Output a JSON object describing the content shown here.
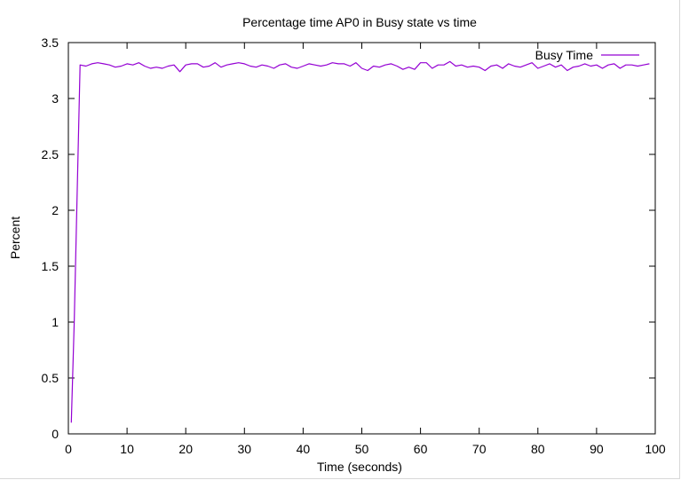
{
  "chart_data": {
    "type": "line",
    "title": "Percentage time AP0 in Busy state vs time",
    "xlabel": "Time (seconds)",
    "ylabel": "Percent",
    "xlim": [
      0,
      100
    ],
    "ylim": [
      0,
      3.5
    ],
    "x_ticks": [
      0,
      10,
      20,
      30,
      40,
      50,
      60,
      70,
      80,
      90,
      100
    ],
    "y_ticks": [
      0,
      0.5,
      1,
      1.5,
      2,
      2.5,
      3,
      3.5
    ],
    "x_tick_labels": [
      "0",
      "10",
      "20",
      "30",
      "40",
      "50",
      "60",
      "70",
      "80",
      "90",
      "100"
    ],
    "y_tick_labels": [
      "0",
      "0.5",
      "1",
      "1.5",
      "2",
      "2.5",
      "3",
      "3.5"
    ],
    "grid": false,
    "legend": "top-right",
    "series": [
      {
        "name": "Busy Time",
        "color": "#9400d3",
        "x": [
          0.5,
          1,
          2,
          3,
          4,
          5,
          6,
          7,
          8,
          9,
          10,
          11,
          12,
          13,
          14,
          15,
          16,
          17,
          18,
          19,
          20,
          21,
          22,
          23,
          24,
          25,
          26,
          27,
          28,
          29,
          30,
          31,
          32,
          33,
          34,
          35,
          36,
          37,
          38,
          39,
          40,
          41,
          42,
          43,
          44,
          45,
          46,
          47,
          48,
          49,
          50,
          51,
          52,
          53,
          54,
          55,
          56,
          57,
          58,
          59,
          60,
          61,
          62,
          63,
          64,
          65,
          66,
          67,
          68,
          69,
          70,
          71,
          72,
          73,
          74,
          75,
          76,
          77,
          78,
          79,
          80,
          81,
          82,
          83,
          84,
          85,
          86,
          87,
          88,
          89,
          90,
          91,
          92,
          93,
          94,
          95,
          96,
          97,
          98,
          99
        ],
        "y": [
          0.1,
          1.0,
          3.3,
          3.29,
          3.31,
          3.32,
          3.31,
          3.3,
          3.28,
          3.29,
          3.31,
          3.3,
          3.32,
          3.29,
          3.27,
          3.28,
          3.27,
          3.29,
          3.3,
          3.24,
          3.3,
          3.31,
          3.31,
          3.28,
          3.29,
          3.32,
          3.28,
          3.3,
          3.31,
          3.32,
          3.31,
          3.29,
          3.28,
          3.3,
          3.29,
          3.27,
          3.3,
          3.31,
          3.28,
          3.27,
          3.29,
          3.31,
          3.3,
          3.29,
          3.3,
          3.32,
          3.31,
          3.31,
          3.29,
          3.32,
          3.27,
          3.25,
          3.29,
          3.28,
          3.3,
          3.31,
          3.29,
          3.26,
          3.28,
          3.26,
          3.32,
          3.32,
          3.27,
          3.3,
          3.3,
          3.33,
          3.29,
          3.3,
          3.28,
          3.29,
          3.28,
          3.25,
          3.29,
          3.3,
          3.27,
          3.31,
          3.29,
          3.28,
          3.3,
          3.32,
          3.27,
          3.29,
          3.31,
          3.28,
          3.3,
          3.25,
          3.28,
          3.29,
          3.31,
          3.29,
          3.3,
          3.27,
          3.3,
          3.31,
          3.27,
          3.3,
          3.3,
          3.29,
          3.3,
          3.31
        ]
      }
    ]
  }
}
